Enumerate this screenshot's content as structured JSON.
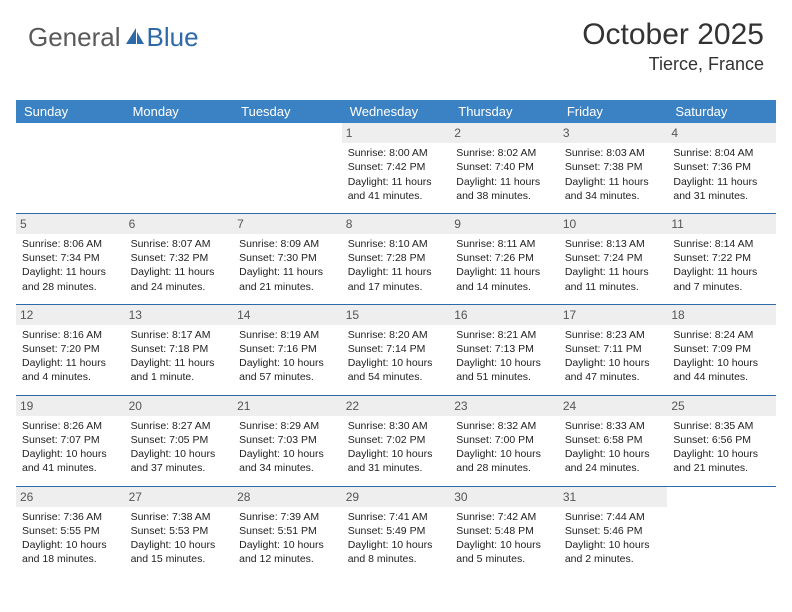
{
  "logo": {
    "text1": "General",
    "text2": "Blue",
    "color1": "#5a5a5a",
    "color2": "#2f6aa8"
  },
  "header": {
    "title": "October 2025",
    "location": "Tierce, France"
  },
  "style": {
    "header_bg": "#3b82c4",
    "header_fg": "#ffffff",
    "row_divider": "#2f6aa8",
    "daynum_bg": "#eeeeee",
    "daynum_fg": "#555555",
    "cell_font_size": 10.5
  },
  "weekdays": [
    "Sunday",
    "Monday",
    "Tuesday",
    "Wednesday",
    "Thursday",
    "Friday",
    "Saturday"
  ],
  "weeks": [
    [
      null,
      null,
      null,
      {
        "n": "1",
        "sr": "8:00 AM",
        "ss": "7:42 PM",
        "dl": "11 hours and 41 minutes."
      },
      {
        "n": "2",
        "sr": "8:02 AM",
        "ss": "7:40 PM",
        "dl": "11 hours and 38 minutes."
      },
      {
        "n": "3",
        "sr": "8:03 AM",
        "ss": "7:38 PM",
        "dl": "11 hours and 34 minutes."
      },
      {
        "n": "4",
        "sr": "8:04 AM",
        "ss": "7:36 PM",
        "dl": "11 hours and 31 minutes."
      }
    ],
    [
      {
        "n": "5",
        "sr": "8:06 AM",
        "ss": "7:34 PM",
        "dl": "11 hours and 28 minutes."
      },
      {
        "n": "6",
        "sr": "8:07 AM",
        "ss": "7:32 PM",
        "dl": "11 hours and 24 minutes."
      },
      {
        "n": "7",
        "sr": "8:09 AM",
        "ss": "7:30 PM",
        "dl": "11 hours and 21 minutes."
      },
      {
        "n": "8",
        "sr": "8:10 AM",
        "ss": "7:28 PM",
        "dl": "11 hours and 17 minutes."
      },
      {
        "n": "9",
        "sr": "8:11 AM",
        "ss": "7:26 PM",
        "dl": "11 hours and 14 minutes."
      },
      {
        "n": "10",
        "sr": "8:13 AM",
        "ss": "7:24 PM",
        "dl": "11 hours and 11 minutes."
      },
      {
        "n": "11",
        "sr": "8:14 AM",
        "ss": "7:22 PM",
        "dl": "11 hours and 7 minutes."
      }
    ],
    [
      {
        "n": "12",
        "sr": "8:16 AM",
        "ss": "7:20 PM",
        "dl": "11 hours and 4 minutes."
      },
      {
        "n": "13",
        "sr": "8:17 AM",
        "ss": "7:18 PM",
        "dl": "11 hours and 1 minute."
      },
      {
        "n": "14",
        "sr": "8:19 AM",
        "ss": "7:16 PM",
        "dl": "10 hours and 57 minutes."
      },
      {
        "n": "15",
        "sr": "8:20 AM",
        "ss": "7:14 PM",
        "dl": "10 hours and 54 minutes."
      },
      {
        "n": "16",
        "sr": "8:21 AM",
        "ss": "7:13 PM",
        "dl": "10 hours and 51 minutes."
      },
      {
        "n": "17",
        "sr": "8:23 AM",
        "ss": "7:11 PM",
        "dl": "10 hours and 47 minutes."
      },
      {
        "n": "18",
        "sr": "8:24 AM",
        "ss": "7:09 PM",
        "dl": "10 hours and 44 minutes."
      }
    ],
    [
      {
        "n": "19",
        "sr": "8:26 AM",
        "ss": "7:07 PM",
        "dl": "10 hours and 41 minutes."
      },
      {
        "n": "20",
        "sr": "8:27 AM",
        "ss": "7:05 PM",
        "dl": "10 hours and 37 minutes."
      },
      {
        "n": "21",
        "sr": "8:29 AM",
        "ss": "7:03 PM",
        "dl": "10 hours and 34 minutes."
      },
      {
        "n": "22",
        "sr": "8:30 AM",
        "ss": "7:02 PM",
        "dl": "10 hours and 31 minutes."
      },
      {
        "n": "23",
        "sr": "8:32 AM",
        "ss": "7:00 PM",
        "dl": "10 hours and 28 minutes."
      },
      {
        "n": "24",
        "sr": "8:33 AM",
        "ss": "6:58 PM",
        "dl": "10 hours and 24 minutes."
      },
      {
        "n": "25",
        "sr": "8:35 AM",
        "ss": "6:56 PM",
        "dl": "10 hours and 21 minutes."
      }
    ],
    [
      {
        "n": "26",
        "sr": "7:36 AM",
        "ss": "5:55 PM",
        "dl": "10 hours and 18 minutes."
      },
      {
        "n": "27",
        "sr": "7:38 AM",
        "ss": "5:53 PM",
        "dl": "10 hours and 15 minutes."
      },
      {
        "n": "28",
        "sr": "7:39 AM",
        "ss": "5:51 PM",
        "dl": "10 hours and 12 minutes."
      },
      {
        "n": "29",
        "sr": "7:41 AM",
        "ss": "5:49 PM",
        "dl": "10 hours and 8 minutes."
      },
      {
        "n": "30",
        "sr": "7:42 AM",
        "ss": "5:48 PM",
        "dl": "10 hours and 5 minutes."
      },
      {
        "n": "31",
        "sr": "7:44 AM",
        "ss": "5:46 PM",
        "dl": "10 hours and 2 minutes."
      },
      null
    ]
  ],
  "labels": {
    "sunrise": "Sunrise: ",
    "sunset": "Sunset: ",
    "daylight": "Daylight: "
  }
}
